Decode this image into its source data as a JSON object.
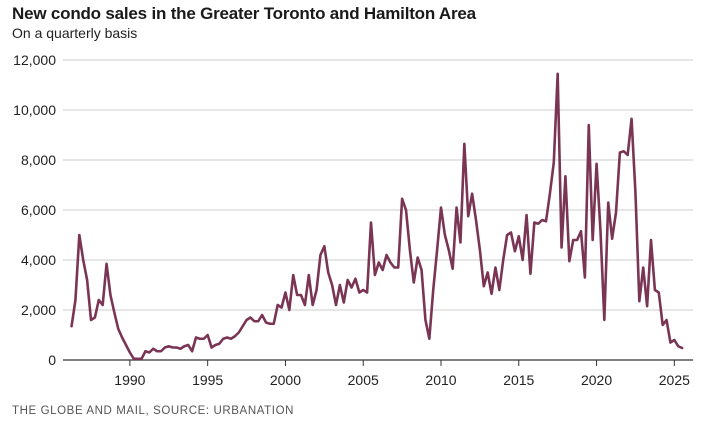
{
  "header": {
    "title": "New condo sales in the Greater Toronto and Hamilton Area",
    "subtitle": "On a quarterly basis"
  },
  "footer": {
    "source": "THE GLOBE AND MAIL, SOURCE: URBANATION"
  },
  "colors": {
    "line": "#7a3555",
    "grid": "#cccccc",
    "axis": "#333333"
  },
  "chart_data": {
    "type": "line",
    "title": "New condo sales in the Greater Toronto and Hamilton Area",
    "subtitle": "On a quarterly basis",
    "xlabel": "",
    "ylabel": "",
    "xlim": [
      1985.7,
      2026.2
    ],
    "ylim": [
      0,
      12000
    ],
    "grid": true,
    "legend": "none",
    "x_ticks": [
      1990,
      1995,
      2000,
      2005,
      2010,
      2015,
      2020,
      2025
    ],
    "x_tick_labels": [
      "1990",
      "1995",
      "2000",
      "2005",
      "2010",
      "2015",
      "2020",
      "2025"
    ],
    "y_ticks": [
      0,
      2000,
      4000,
      6000,
      8000,
      10000,
      12000
    ],
    "y_tick_labels": [
      "0",
      "2,000",
      "4,000",
      "6,000",
      "8,000",
      "10,000",
      "12,000"
    ],
    "series": [
      {
        "x": [
          1986.25,
          1986.5,
          1986.75,
          1987.0,
          1987.25,
          1987.5,
          1987.75,
          1988.0,
          1988.25,
          1988.5,
          1988.75,
          1989.0,
          1989.25,
          1989.5,
          1989.75,
          1990.0,
          1990.25,
          1990.5,
          1990.75,
          1991.0,
          1991.25,
          1991.5,
          1991.75,
          1992.0,
          1992.25,
          1992.5,
          1992.75,
          1993.0,
          1993.25,
          1993.5,
          1993.75,
          1994.0,
          1994.25,
          1994.5,
          1994.75,
          1995.0,
          1995.25,
          1995.5,
          1995.75,
          1996.0,
          1996.25,
          1996.5,
          1996.75,
          1997.0,
          1997.25,
          1997.5,
          1997.75,
          1998.0,
          1998.25,
          1998.5,
          1998.75,
          1999.0,
          1999.25,
          1999.5,
          1999.75,
          2000.0,
          2000.25,
          2000.5,
          2000.75,
          2001.0,
          2001.25,
          2001.5,
          2001.75,
          2002.0,
          2002.25,
          2002.5,
          2002.75,
          2003.0,
          2003.25,
          2003.5,
          2003.75,
          2004.0,
          2004.25,
          2004.5,
          2004.75,
          2005.0,
          2005.25,
          2005.5,
          2005.75,
          2006.0,
          2006.25,
          2006.5,
          2006.75,
          2007.0,
          2007.25,
          2007.5,
          2007.75,
          2008.0,
          2008.25,
          2008.5,
          2008.75,
          2009.0,
          2009.25,
          2009.5,
          2009.75,
          2010.0,
          2010.25,
          2010.5,
          2010.75,
          2011.0,
          2011.25,
          2011.5,
          2011.75,
          2012.0,
          2012.25,
          2012.5,
          2012.75,
          2013.0,
          2013.25,
          2013.5,
          2013.75,
          2014.0,
          2014.25,
          2014.5,
          2014.75,
          2015.0,
          2015.25,
          2015.5,
          2015.75,
          2016.0,
          2016.25,
          2016.5,
          2016.75,
          2017.0,
          2017.25,
          2017.5,
          2017.75,
          2018.0,
          2018.25,
          2018.5,
          2018.75,
          2019.0,
          2019.25,
          2019.5,
          2019.75,
          2020.0,
          2020.25,
          2020.5,
          2020.75,
          2021.0,
          2021.25,
          2021.5,
          2021.75,
          2022.0,
          2022.25,
          2022.5,
          2022.75,
          2023.0,
          2023.25,
          2023.5,
          2023.75,
          2024.0,
          2024.25,
          2024.5,
          2024.75,
          2025.0,
          2025.25,
          2025.5
        ],
        "values": [
          1350,
          2400,
          5000,
          4000,
          3200,
          1600,
          1700,
          2400,
          2200,
          3850,
          2600,
          1900,
          1250,
          900,
          600,
          300,
          50,
          50,
          50,
          350,
          300,
          450,
          350,
          350,
          500,
          550,
          500,
          500,
          450,
          550,
          600,
          350,
          900,
          850,
          850,
          1000,
          500,
          600,
          650,
          850,
          900,
          850,
          950,
          1100,
          1350,
          1600,
          1700,
          1550,
          1550,
          1800,
          1500,
          1450,
          1450,
          2200,
          2100,
          2700,
          2000,
          3400,
          2600,
          2600,
          2200,
          3400,
          2200,
          2800,
          4200,
          4550,
          3500,
          3000,
          2200,
          3000,
          2300,
          3200,
          2900,
          3250,
          2700,
          2800,
          2700,
          5500,
          3400,
          3900,
          3600,
          4200,
          3900,
          3700,
          3700,
          6450,
          6000,
          4400,
          3100,
          4100,
          3600,
          1600,
          850,
          2800,
          4400,
          6100,
          5000,
          4400,
          3650,
          6100,
          4700,
          8650,
          5750,
          6650,
          5600,
          4400,
          2950,
          3500,
          2650,
          3700,
          2800,
          4000,
          5000,
          5100,
          4350,
          4950,
          4000,
          5800,
          3450,
          5500,
          5450,
          5600,
          5550,
          6650,
          7900,
          11450,
          4500,
          7350,
          3950,
          4800,
          4800,
          5150,
          3300,
          9400,
          4800,
          7850,
          5200,
          1600,
          6300,
          4850,
          5900,
          8300,
          8350,
          8200,
          9650,
          6700,
          2350,
          3700,
          2150,
          4800,
          2800,
          2700,
          1400,
          1600,
          700,
          800,
          550,
          480
        ]
      }
    ],
    "source": "THE GLOBE AND MAIL, SOURCE: URBANATION"
  }
}
